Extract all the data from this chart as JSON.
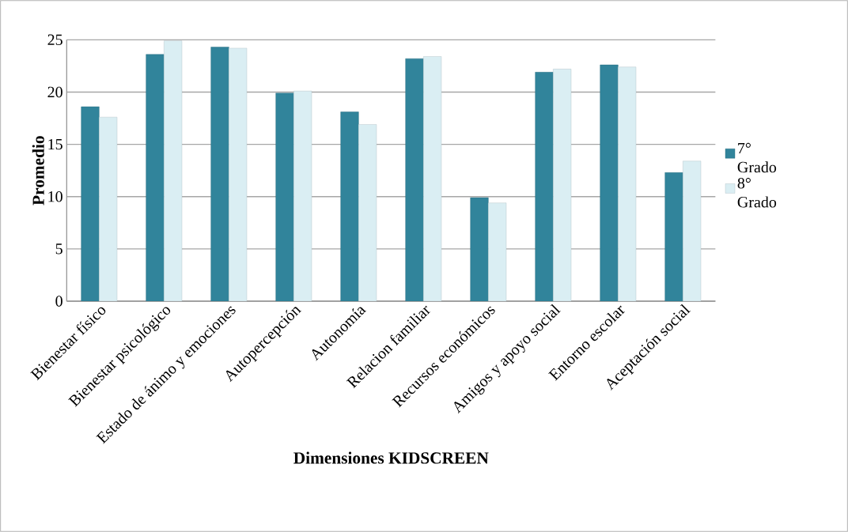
{
  "chart_data": {
    "type": "bar",
    "xlabel": "Dimensiones KIDSCREEN",
    "ylabel": "Promedio",
    "categories": [
      "Bienestar físico",
      "Bienestar psicológico",
      "Estado de ánimo y emociones",
      "Autopercepción",
      "Autonomía",
      "Relacion familiar",
      "Recursos económicos",
      "Amigos y apoyo social",
      "Entorno escolar",
      "Aceptación social"
    ],
    "series": [
      {
        "name": "7° Grado",
        "color": "#31849b",
        "values": [
          18.6,
          23.6,
          24.3,
          19.9,
          18.1,
          23.2,
          9.9,
          21.9,
          22.6,
          12.3
        ]
      },
      {
        "name": "8° Grado",
        "color": "#daeef3",
        "values": [
          17.6,
          24.9,
          24.2,
          20.1,
          16.9,
          23.4,
          9.4,
          22.2,
          22.4,
          13.4
        ]
      }
    ],
    "ylim": [
      0,
      25
    ],
    "yticks": [
      0,
      5,
      10,
      15,
      20,
      25
    ],
    "grid": "y",
    "legend": "right"
  }
}
